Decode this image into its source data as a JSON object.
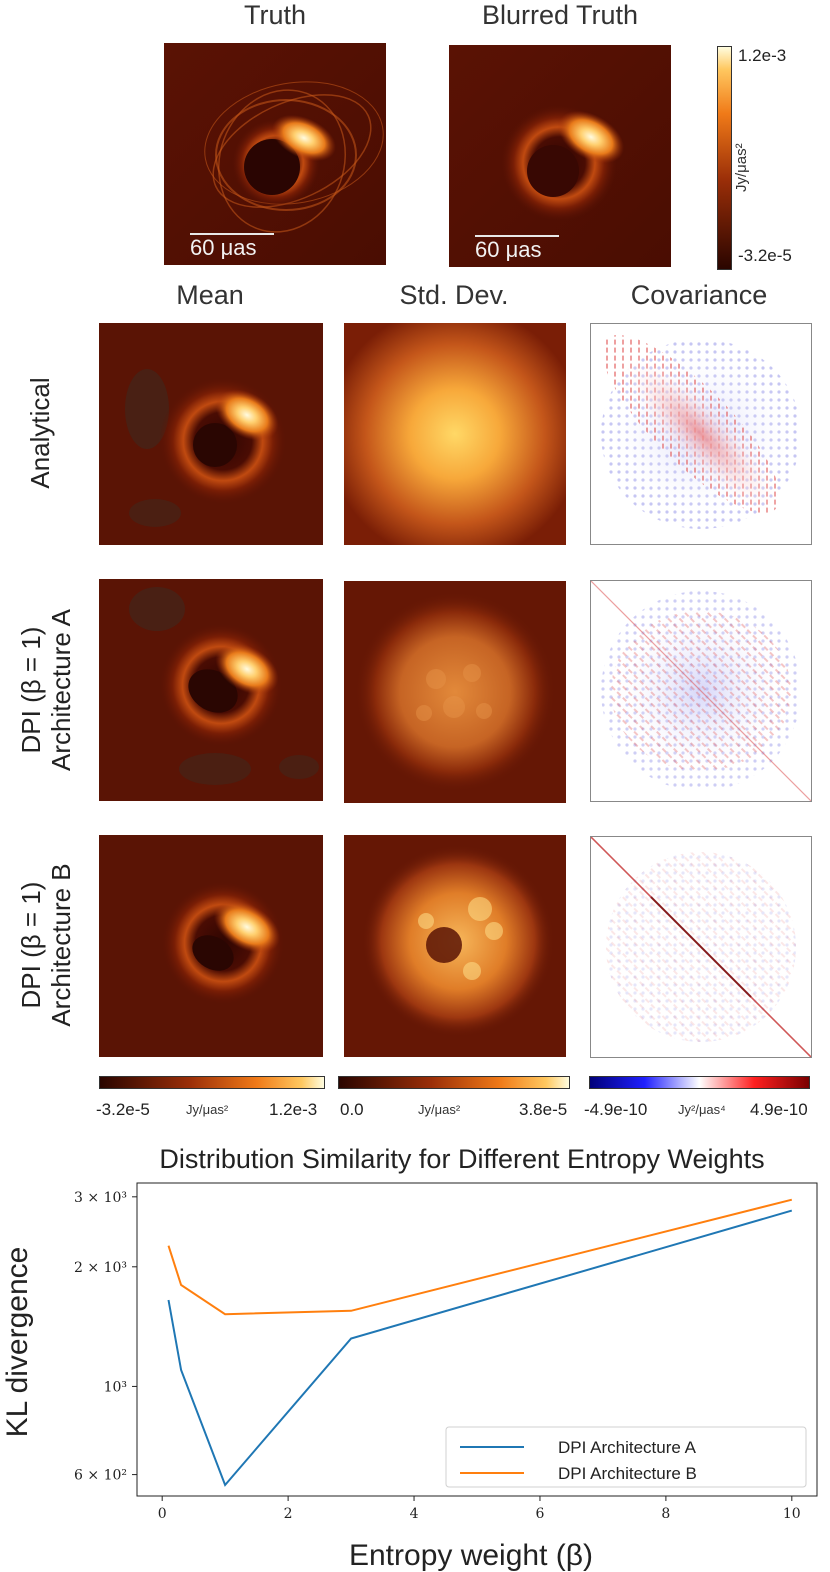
{
  "top": {
    "truth_title": "Truth",
    "blurred_title": "Blurred Truth",
    "scalebar_label": "60 μas",
    "colorbar": {
      "max": "1.2e-3",
      "min": "-3.2e-5",
      "unit": "Jy/μas²"
    }
  },
  "columns": {
    "mean": "Mean",
    "std": "Std. Dev.",
    "cov": "Covariance"
  },
  "rows": {
    "analytical": "Analytical",
    "dpi_a_line1": "DPI (β = 1)",
    "dpi_a_line2": "Architecture A",
    "dpi_b_line1": "DPI (β = 1)",
    "dpi_b_line2": "Architecture B"
  },
  "colorbars": {
    "mean": {
      "min": "-3.2e-5",
      "unit": "Jy/μas²",
      "max": "1.2e-3"
    },
    "std": {
      "min": "0.0",
      "unit": "Jy/μas²",
      "max": "3.8e-5"
    },
    "cov": {
      "min": "-4.9e-10",
      "unit": "Jy²/μas⁴",
      "max": "4.9e-10"
    }
  },
  "chart_data": {
    "type": "line",
    "title": "Distribution Similarity for Different Entropy Weights",
    "xlabel": "Entropy weight (β)",
    "ylabel": "KL divergence",
    "yscale": "log",
    "xlim": [
      -0.4,
      10.4
    ],
    "ylim": [
      530,
      3250
    ],
    "xticks": [
      0,
      2,
      4,
      6,
      8,
      10
    ],
    "xtick_labels": [
      "0",
      "2",
      "4",
      "6",
      "8",
      "10"
    ],
    "yticks": [
      600,
      1000,
      2000,
      3000
    ],
    "ytick_labels": [
      "6 × 10²",
      "10³",
      "2 × 10³",
      "3 × 10³"
    ],
    "legend_position": "lower-right",
    "series": [
      {
        "name": "DPI Architecture A",
        "color": "#1f77b4",
        "x": [
          0.1,
          0.3,
          1,
          3,
          10
        ],
        "y": [
          1650,
          1100,
          565,
          1320,
          2770
        ]
      },
      {
        "name": "DPI Architecture B",
        "color": "#ff7f0e",
        "x": [
          0.1,
          0.3,
          1,
          3,
          10
        ],
        "y": [
          2260,
          1800,
          1520,
          1550,
          2950
        ]
      }
    ]
  }
}
